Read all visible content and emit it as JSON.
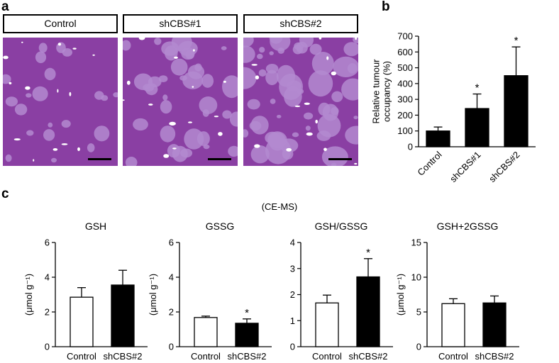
{
  "panel_labels": {
    "a": "a",
    "b": "b",
    "c": "c"
  },
  "micrographs": [
    {
      "label": "Control"
    },
    {
      "label": "shCBS#1"
    },
    {
      "label": "shCBS#2"
    }
  ],
  "method_label": "(CE-MS)",
  "colors": {
    "tissue": "#8a3fa3",
    "tumour": "#b38ad0",
    "hole": "#ffffff",
    "bar_black": "#000000",
    "bar_white": "#ffffff"
  },
  "chart_data": [
    {
      "id": "b",
      "type": "bar",
      "title": "",
      "categories": [
        "Control",
        "shCBS#1",
        "shCBS#2"
      ],
      "values": [
        100,
        242,
        450
      ],
      "errors": [
        25,
        92,
        182
      ],
      "significance": [
        "",
        "*",
        "*"
      ],
      "ylabel": [
        "Relative tumour",
        "occupancy (%)"
      ],
      "ylim": [
        0,
        700
      ],
      "yticks": [
        0,
        100,
        200,
        300,
        400,
        500,
        600,
        700
      ],
      "bar_fill": [
        "black",
        "black",
        "black"
      ]
    },
    {
      "id": "c1",
      "type": "bar",
      "title": "GSH",
      "categories": [
        "Control",
        "shCBS#2"
      ],
      "values": [
        2.85,
        3.55
      ],
      "errors": [
        0.55,
        0.85
      ],
      "significance": [
        "",
        ""
      ],
      "ylabel": "(μmol g⁻¹)",
      "ylim": [
        0,
        6
      ],
      "yticks": [
        0,
        2,
        4,
        6
      ],
      "bar_fill": [
        "white",
        "black"
      ]
    },
    {
      "id": "c2",
      "type": "bar",
      "title": "GSSG",
      "categories": [
        "Control",
        "shCBS#2"
      ],
      "values": [
        1.68,
        1.35
      ],
      "errors": [
        0.08,
        0.25
      ],
      "significance": [
        "",
        "*"
      ],
      "ylabel": "(μmol g⁻¹)",
      "ylim": [
        0,
        6
      ],
      "yticks": [
        0,
        2,
        4,
        6
      ],
      "bar_fill": [
        "white",
        "black"
      ]
    },
    {
      "id": "c3",
      "type": "bar",
      "title": "GSH/GSSG",
      "categories": [
        "Control",
        "shCBS#2"
      ],
      "values": [
        1.68,
        2.68
      ],
      "errors": [
        0.3,
        0.7
      ],
      "significance": [
        "",
        "*"
      ],
      "ylabel": "",
      "ylim": [
        0,
        4
      ],
      "yticks": [
        0,
        1,
        2,
        3,
        4
      ],
      "bar_fill": [
        "white",
        "black"
      ]
    },
    {
      "id": "c4",
      "type": "bar",
      "title": "GSH+2GSSG",
      "categories": [
        "Control",
        "shCBS#2"
      ],
      "values": [
        6.2,
        6.3
      ],
      "errors": [
        0.7,
        1.0
      ],
      "significance": [
        "",
        ""
      ],
      "ylabel": "(μmol g⁻¹)",
      "ylim": [
        0,
        15
      ],
      "yticks": [
        0,
        5,
        10,
        15
      ],
      "bar_fill": [
        "white",
        "black"
      ]
    }
  ]
}
